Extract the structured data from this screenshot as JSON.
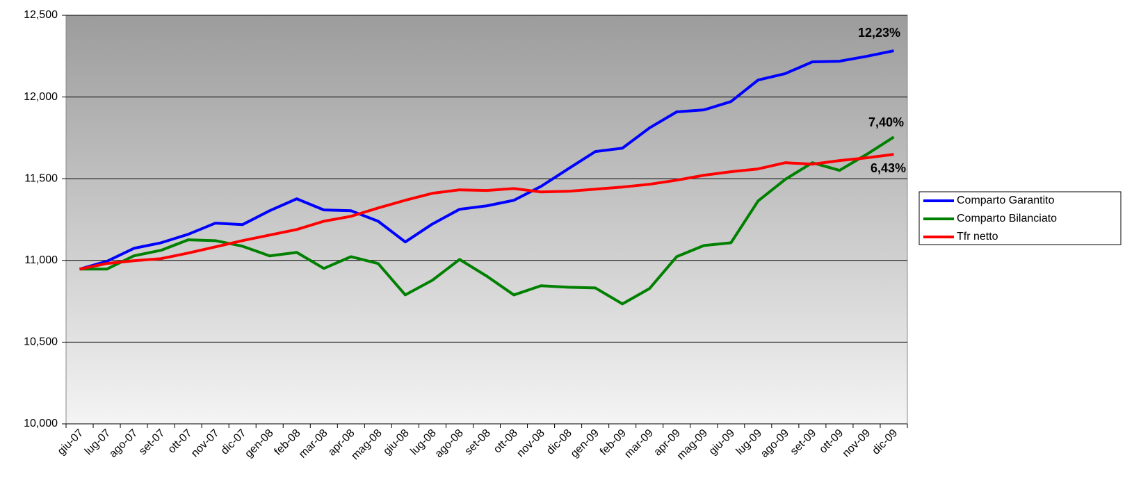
{
  "chart_data": {
    "type": "line",
    "categories": [
      "giu-07",
      "lug-07",
      "ago-07",
      "set-07",
      "ott-07",
      "nov-07",
      "dic-07",
      "gen-08",
      "feb-08",
      "mar-08",
      "apr-08",
      "mag-08",
      "giu-08",
      "lug-08",
      "ago-08",
      "set-08",
      "ott-08",
      "nov-08",
      "dic-08",
      "gen-09",
      "feb-09",
      "mar-09",
      "apr-09",
      "mag-09",
      "giu-09",
      "lug-09",
      "ago-09",
      "set-09",
      "ott-09",
      "nov-09",
      "dic-09"
    ],
    "series": [
      {
        "name": "Comparto Garantito",
        "color": "#0000ff",
        "values": [
          10947,
          10994,
          11074,
          11108,
          11160,
          11228,
          11219,
          11304,
          11377,
          11309,
          11304,
          11240,
          11113,
          11223,
          11313,
          11334,
          11368,
          11453,
          11560,
          11666,
          11687,
          11811,
          11909,
          11921,
          11972,
          12104,
          12143,
          12215,
          12219,
          12249,
          12283
        ]
      },
      {
        "name": "Comparto Bilanciato",
        "color": "#008000",
        "values": [
          10947,
          10947,
          11028,
          11062,
          11126,
          11121,
          11087,
          11028,
          11049,
          10951,
          11023,
          10981,
          10789,
          10879,
          11006,
          10904,
          10789,
          10845,
          10836,
          10832,
          10734,
          10828,
          11023,
          11091,
          11108,
          11364,
          11496,
          11598,
          11551,
          11649,
          11755
        ]
      },
      {
        "name": "Tfr netto",
        "color": "#ff0000",
        "values": [
          10947,
          10981,
          10998,
          11011,
          11045,
          11083,
          11121,
          11155,
          11189,
          11240,
          11270,
          11321,
          11368,
          11411,
          11432,
          11428,
          11440,
          11419,
          11423,
          11436,
          11449,
          11466,
          11491,
          11521,
          11543,
          11560,
          11598,
          11589,
          11611,
          11628,
          11649
        ]
      }
    ],
    "annotations": [
      "12,23%",
      "7,40%",
      "6,43%"
    ],
    "ylim": [
      10000,
      12500
    ],
    "yticks": [
      {
        "value": 10000,
        "label": "10,000"
      },
      {
        "value": 10500,
        "label": "10,500"
      },
      {
        "value": 11000,
        "label": "11,000"
      },
      {
        "value": 11500,
        "label": "11,500"
      },
      {
        "value": 12000,
        "label": "12,000"
      },
      {
        "value": 12500,
        "label": "12,500"
      }
    ],
    "grid": true,
    "legend": "right"
  }
}
